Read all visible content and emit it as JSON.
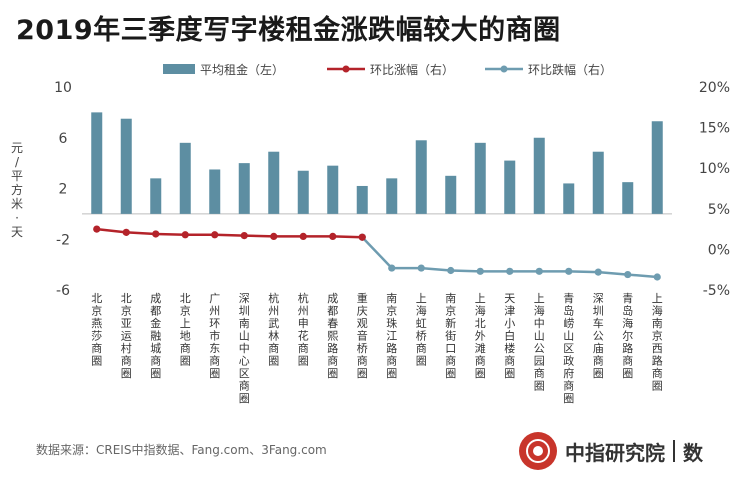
{
  "title": "2019年三季度写字楼租金涨跌幅较大的商圈",
  "source": "数据来源：CREIS中指数据、Fang.com、3Fang.com",
  "brand": {
    "name": "中指研究院",
    "mark": "数"
  },
  "colors": {
    "bar": "#5d8ea2",
    "up": "#b4232a",
    "down": "#6e9cb0"
  },
  "chart_data": {
    "type": "bar+line",
    "categories": [
      "北京燕莎商圈",
      "北京亚运村商圈",
      "成都金融城商圈",
      "北京上地商圈",
      "广州环市东商圈",
      "深圳南山中心区商圈",
      "杭州武林商圈",
      "杭州申花商圈",
      "成都春熙路商圈",
      "重庆观音桥商圈",
      "南京珠江路商圈",
      "上海虹桥商圈",
      "南京新街口商圈",
      "上海北外滩商圈",
      "天津小白楼商圈",
      "上海中山公园商圈",
      "青岛崂山区政府商圈",
      "深圳车公庙商圈",
      "青岛海尔路商圈",
      "上海南京西路商圈"
    ],
    "series": [
      {
        "name": "平均租金（左）",
        "type": "bar",
        "axis": "left",
        "values": [
          8.0,
          7.5,
          2.8,
          5.6,
          3.5,
          4.0,
          4.9,
          3.4,
          3.8,
          2.2,
          2.8,
          5.8,
          3.0,
          5.6,
          4.2,
          6.0,
          2.4,
          4.9,
          2.5,
          7.3
        ]
      },
      {
        "name": "环比涨幅（右）",
        "type": "line",
        "axis": "right",
        "values": [
          2.5,
          2.1,
          1.9,
          1.8,
          1.8,
          1.7,
          1.6,
          1.6,
          1.6,
          1.5,
          null,
          null,
          null,
          null,
          null,
          null,
          null,
          null,
          null,
          null
        ]
      },
      {
        "name": "环比跌幅（右）",
        "type": "line",
        "axis": "right",
        "values": [
          null,
          null,
          null,
          null,
          null,
          null,
          null,
          null,
          null,
          1.5,
          -2.3,
          -2.3,
          -2.6,
          -2.7,
          -2.7,
          -2.7,
          -2.7,
          -2.8,
          -3.1,
          -3.4
        ]
      }
    ],
    "y_left": {
      "label": "元/平方米·天",
      "ticks": [
        "-6",
        "-2",
        "2",
        "6",
        "10"
      ],
      "range": [
        -6,
        10
      ]
    },
    "y_right": {
      "ticks": [
        "-5%",
        "0%",
        "5%",
        "10%",
        "15%",
        "20%"
      ],
      "range": [
        -5,
        20
      ]
    },
    "legend": "top"
  }
}
